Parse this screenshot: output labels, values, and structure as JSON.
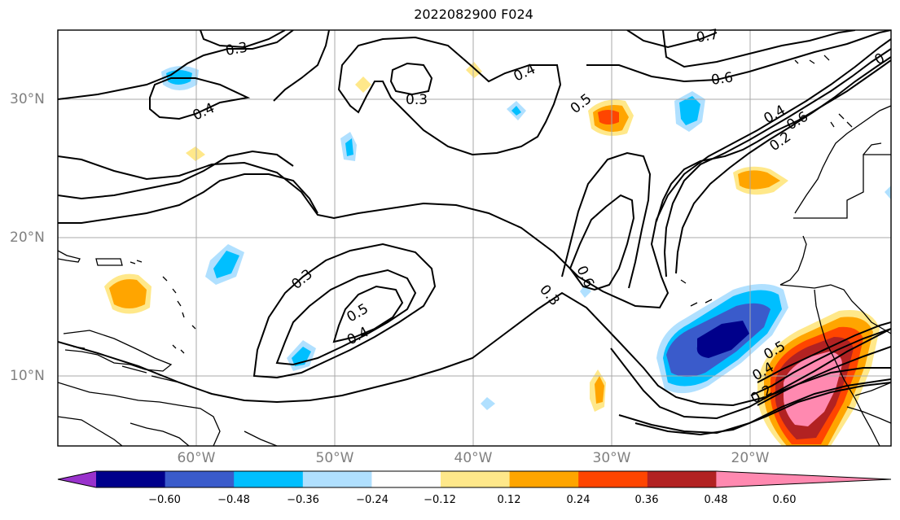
{
  "title": "2022082900 F024",
  "lat_labels": [
    "30°N",
    "20°N",
    "10°N"
  ],
  "lon_labels": [
    "60°W",
    "50°W",
    "40°W",
    "30°W",
    "20°W"
  ],
  "contour_labels": [
    "0.3",
    "0.3",
    "0.4",
    "0.4",
    "0.7",
    "0.6",
    "0.5",
    "0.4",
    "0.2",
    "0.6",
    "0.3",
    "0.5",
    "0.4",
    "0.3",
    "0.6",
    "0.5",
    "0.4",
    "0.2",
    "0"
  ],
  "colorbar": {
    "ticks": [
      "−0.60",
      "−0.48",
      "−0.36",
      "−0.24",
      "−0.12",
      "0.12",
      "0.24",
      "0.36",
      "0.48",
      "0.60"
    ],
    "colors": [
      "#9932cc",
      "#00008b",
      "#3a5bcb",
      "#00bfff",
      "#b0e0ff",
      "#ffffff",
      "#ffe88a",
      "#ffa500",
      "#ff4500",
      "#b22222",
      "#ff89b0"
    ]
  }
}
